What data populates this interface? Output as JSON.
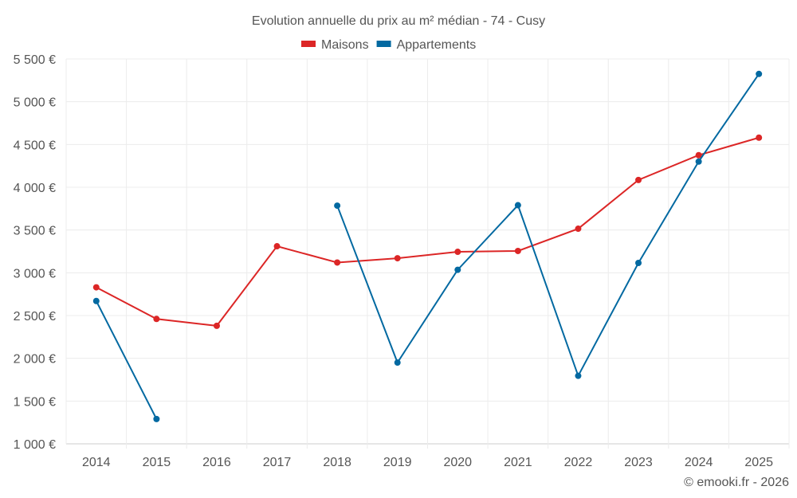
{
  "chart_data": {
    "type": "line",
    "title": "Evolution annuelle du prix au m² médian - 74 - Cusy",
    "xlabel": "",
    "ylabel": "",
    "categories": [
      "2014",
      "2015",
      "2016",
      "2017",
      "2018",
      "2019",
      "2020",
      "2021",
      "2022",
      "2023",
      "2024",
      "2025"
    ],
    "y_ticks": [
      "1 000 €",
      "1 500 €",
      "2 000 €",
      "2 500 €",
      "3 000 €",
      "3 500 €",
      "4 000 €",
      "4 500 €",
      "5 000 €",
      "5 500 €"
    ],
    "y_tick_values": [
      1000,
      1500,
      2000,
      2500,
      3000,
      3500,
      4000,
      4500,
      5000,
      5500
    ],
    "ylim": [
      1000,
      5500
    ],
    "grid": true,
    "legend_position": "top-center",
    "series": [
      {
        "name": "Maisons",
        "color": "#dc2626",
        "values": [
          2830,
          2460,
          2380,
          3310,
          3120,
          3170,
          3245,
          3255,
          3515,
          4085,
          4375,
          4580
        ]
      },
      {
        "name": "Appartements",
        "color": "#0369a1",
        "values": [
          2670,
          1290,
          null,
          null,
          3785,
          1950,
          3035,
          3790,
          1795,
          3115,
          4300,
          5325
        ]
      }
    ],
    "credit": "© emooki.fr - 2026"
  }
}
